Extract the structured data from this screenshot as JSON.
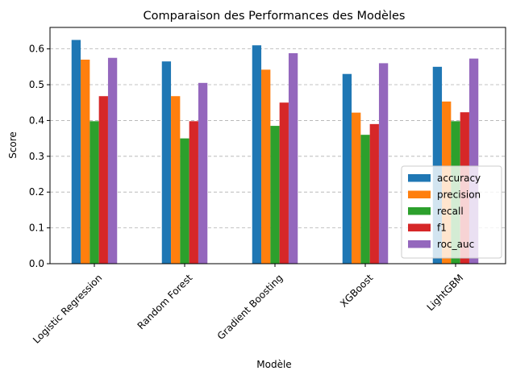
{
  "chart_data": {
    "type": "bar",
    "title": "Comparaison des Performances des Modèles",
    "xlabel": "Modèle",
    "ylabel": "Score",
    "categories": [
      "Logistic Regression",
      "Random Forest",
      "Gradient Boosting",
      "XGBoost",
      "LightGBM"
    ],
    "series": [
      {
        "name": "accuracy",
        "color": "#1f77b4",
        "values": [
          0.625,
          0.565,
          0.61,
          0.53,
          0.55
        ]
      },
      {
        "name": "precision",
        "color": "#ff7f0e",
        "values": [
          0.57,
          0.468,
          0.542,
          0.422,
          0.453
        ]
      },
      {
        "name": "recall",
        "color": "#2ca02c",
        "values": [
          0.398,
          0.35,
          0.385,
          0.36,
          0.398
        ]
      },
      {
        "name": "f1",
        "color": "#d62728",
        "values": [
          0.468,
          0.398,
          0.45,
          0.39,
          0.423
        ]
      },
      {
        "name": "roc_auc",
        "color": "#9467bd",
        "values": [
          0.575,
          0.505,
          0.588,
          0.56,
          0.573
        ]
      }
    ],
    "ylim": [
      0,
      0.66
    ],
    "yticks": [
      "0.0",
      "0.1",
      "0.2",
      "0.3",
      "0.4",
      "0.5",
      "0.6"
    ],
    "grid": "y-dashed",
    "legend_position": "lower-right"
  }
}
